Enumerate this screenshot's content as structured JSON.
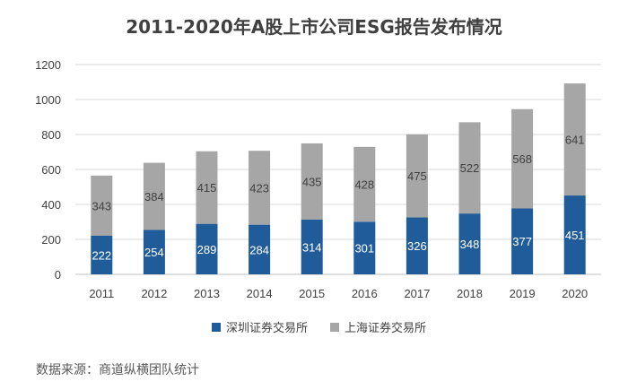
{
  "chart_data": {
    "type": "bar",
    "stacked": true,
    "title": "2011-2020年A股上市公司ESG报告发布情况",
    "categories": [
      "2011",
      "2012",
      "2013",
      "2014",
      "2015",
      "2016",
      "2017",
      "2018",
      "2019",
      "2020"
    ],
    "series": [
      {
        "name": "深圳证券交易所",
        "color": "#1f5c99",
        "label_color": "#ffffff",
        "values": [
          222,
          254,
          289,
          284,
          314,
          301,
          326,
          348,
          377,
          451
        ]
      },
      {
        "name": "上海证券交易所",
        "color": "#a6a6a6",
        "label_color": "#404040",
        "values": [
          343,
          384,
          415,
          423,
          435,
          428,
          475,
          522,
          568,
          641
        ]
      }
    ],
    "ylim": [
      0,
      1200
    ],
    "yticks": [
      0,
      200,
      400,
      600,
      800,
      1000,
      1200
    ],
    "grid": true,
    "legend_position": "bottom",
    "source": "数据来源：商道纵横团队统计"
  }
}
